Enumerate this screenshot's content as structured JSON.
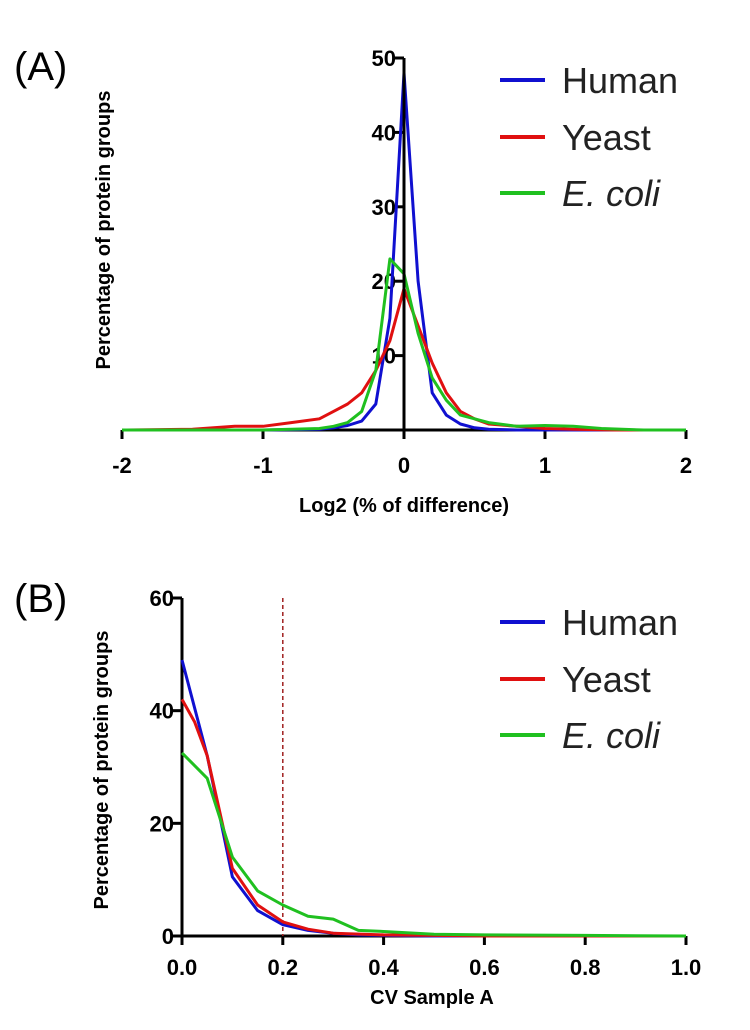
{
  "chart_data": [
    {
      "panel_label": "(A)",
      "type": "line",
      "xlabel": "Log2 (% of difference)",
      "ylabel": "Percentage of protein groups",
      "xlim": [
        -2,
        2
      ],
      "ylim": [
        0,
        50
      ],
      "xticks": [
        "-2",
        "-1",
        "0",
        "1",
        "2"
      ],
      "yticks": [
        "10",
        "20",
        "30",
        "40",
        "50"
      ],
      "grid": false,
      "legend_position": "top-right",
      "series": [
        {
          "name": "Human",
          "color": "#1010d0",
          "x": [
            -2,
            -1.5,
            -1,
            -0.6,
            -0.5,
            -0.4,
            -0.3,
            -0.2,
            -0.1,
            0,
            0.1,
            0.2,
            0.3,
            0.4,
            0.5,
            0.6,
            0.8,
            1,
            1.5,
            2
          ],
          "y": [
            0,
            0,
            0,
            0.1,
            0.3,
            0.6,
            1.2,
            3.5,
            15,
            48,
            20,
            5,
            2,
            0.8,
            0.3,
            0.1,
            0,
            0,
            0,
            0
          ]
        },
        {
          "name": "Yeast",
          "color": "#e01010",
          "x": [
            -2,
            -1.5,
            -1.2,
            -1,
            -0.8,
            -0.6,
            -0.5,
            -0.4,
            -0.3,
            -0.2,
            -0.1,
            0,
            0.1,
            0.2,
            0.3,
            0.4,
            0.5,
            0.6,
            0.8,
            1,
            1.2,
            1.5,
            2
          ],
          "y": [
            0,
            0.1,
            0.5,
            0.5,
            1,
            1.5,
            2.5,
            3.5,
            5,
            8,
            12,
            19,
            14,
            9,
            5,
            2.5,
            1.5,
            0.8,
            0.5,
            0.2,
            0.1,
            0,
            0
          ]
        },
        {
          "name": "E. coli",
          "italic": true,
          "color": "#20c020",
          "x": [
            -2,
            -1,
            -0.6,
            -0.5,
            -0.4,
            -0.3,
            -0.2,
            -0.1,
            0,
            0.1,
            0.2,
            0.3,
            0.4,
            0.5,
            0.6,
            0.8,
            1,
            1.2,
            1.4,
            1.7,
            2
          ],
          "y": [
            0,
            0,
            0.2,
            0.5,
            1,
            2.5,
            8,
            23,
            21,
            13,
            7,
            4,
            2,
            1.5,
            1,
            0.5,
            0.6,
            0.5,
            0.2,
            0,
            0
          ]
        }
      ]
    },
    {
      "panel_label": "(B)",
      "type": "line",
      "xlabel": "CV Sample A",
      "ylabel": "Percentage of protein groups",
      "xlim": [
        0,
        1
      ],
      "ylim": [
        0,
        60
      ],
      "xticks": [
        "0.0",
        "0.2",
        "0.4",
        "0.6",
        "0.8",
        "1.0"
      ],
      "yticks": [
        "0",
        "20",
        "40",
        "60"
      ],
      "grid": false,
      "legend_position": "top-right",
      "threshold_line": {
        "x": 0.2,
        "style": "dashed",
        "color": "#a02020"
      },
      "series": [
        {
          "name": "Human",
          "color": "#1010d0",
          "x": [
            0,
            0.05,
            0.1,
            0.15,
            0.2,
            0.25,
            0.3,
            0.35,
            0.4,
            0.5,
            0.6,
            0.8,
            1
          ],
          "y": [
            49,
            32,
            10.5,
            4.5,
            2,
            1,
            0.5,
            0.2,
            0.1,
            0,
            0,
            0,
            0
          ]
        },
        {
          "name": "Yeast",
          "color": "#e01010",
          "x": [
            0,
            0.025,
            0.05,
            0.1,
            0.15,
            0.2,
            0.25,
            0.3,
            0.4,
            0.5,
            0.6,
            0.8,
            1
          ],
          "y": [
            42,
            38,
            32,
            12,
            5.5,
            2.5,
            1.2,
            0.5,
            0.2,
            0.1,
            0,
            0,
            0
          ]
        },
        {
          "name": "E. coli",
          "italic": true,
          "color": "#20c020",
          "x": [
            0,
            0.05,
            0.1,
            0.15,
            0.2,
            0.25,
            0.3,
            0.35,
            0.4,
            0.5,
            0.6,
            0.8,
            1
          ],
          "y": [
            32.5,
            28,
            14,
            8,
            5.5,
            3.5,
            3,
            1,
            0.8,
            0.3,
            0.2,
            0.1,
            0
          ]
        }
      ]
    }
  ]
}
